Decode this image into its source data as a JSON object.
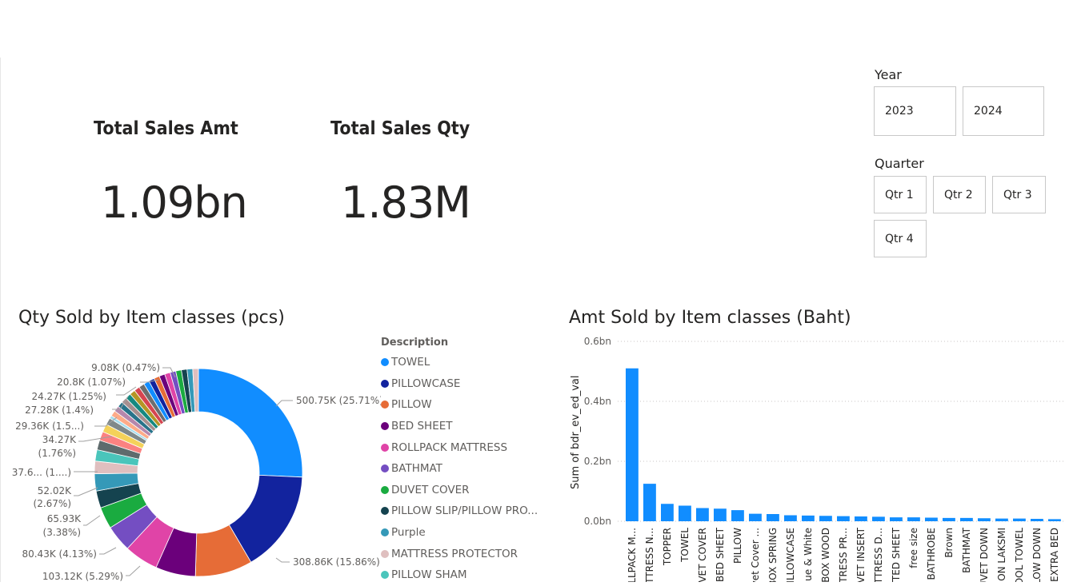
{
  "kpis": {
    "sales_amt": {
      "title": "Total Sales Amt",
      "value": "1.09bn"
    },
    "sales_qty": {
      "title": "Total Sales Qty",
      "value": "1.83M"
    }
  },
  "slicers": {
    "year": {
      "label": "Year",
      "options": [
        "2023",
        "2024"
      ]
    },
    "quarter": {
      "label": "Quarter",
      "options": [
        "Qtr 1",
        "Qtr 2",
        "Qtr 3",
        "Qtr 4"
      ]
    }
  },
  "colors": {
    "accent": "#118dff",
    "donut_palette": [
      "#118dff",
      "#12239e",
      "#e66c37",
      "#6b007b",
      "#e044a7",
      "#744ec2",
      "#1aab40",
      "#15434f",
      "#3599b8",
      "#dfbfbf",
      "#4ac5bb",
      "#5f6b6d",
      "#fb8281",
      "#f4d25a",
      "#7f898a",
      "#a4ddee",
      "#fdab89",
      "#b687ac",
      "#28738a",
      "#a78f8f",
      "#168980",
      "#b59525",
      "#d64550",
      "#6e6e6e"
    ]
  },
  "donut": {
    "title": "Qty Sold by Item classes (pcs)",
    "legend_title": "Description",
    "legend": [
      "TOWEL",
      "PILLOWCASE",
      "PILLOW",
      "BED SHEET",
      "ROLLPACK MATTRESS",
      "BATHMAT",
      "DUVET COVER",
      "PILLOW SLIP/PILLOW PRO...",
      "Purple",
      "MATTRESS PROTECTOR",
      "PILLOW SHAM"
    ],
    "labels": {
      "towel": "500.75K (25.71%)",
      "pillowcase": "308.86K (15.86%)",
      "l9": "9.08K (0.47%)",
      "l20": "20.8K (1.07%)",
      "l24": "24.27K (1.25%)",
      "l27": "27.28K (1.4%)",
      "l29": "29.36K (1.5...)",
      "l34a": "34.27K",
      "l34b": "(1.76%)",
      "l37": "37.6... (1....)",
      "l52a": "52.02K",
      "l52b": "(2.67%)",
      "l65a": "65.93K",
      "l65b": "(3.38%)",
      "l80": "80.43K (4.13%)",
      "l103": "103.12K (5.29%)"
    }
  },
  "chart_data": {
    "type": "bar",
    "title": "Amt Sold by Item classes (Baht)",
    "ylabel": "Sum of bdr_ev_ed_val",
    "xlabel": "",
    "ylim": [
      0,
      0.6
    ],
    "yticks": [
      "0.0bn",
      "0.2bn",
      "0.4bn",
      "0.6bn"
    ],
    "ytick_values": [
      0,
      0.2,
      0.4,
      0.6
    ],
    "grid": true,
    "categories": [
      "ROLLPACK M...",
      "MATTRESS N...",
      "TOPPER",
      "TOWEL",
      "DUVET COVER",
      "BED SHEET",
      "PILLOW",
      "Duvet Cover ...",
      "BOX SPRING",
      "PILLOWCASE",
      "Blue & White",
      "BOX WOOD",
      "MATTRESS PR...",
      "DUVET INSERT",
      "MATTRESS D...",
      "FITTED SHEET",
      "free size",
      "BATHROBE",
      "Brown",
      "BATHMAT",
      "DUVET DOWN",
      "CUSHION LAKSMI",
      "POOL TOWEL",
      "PILLOW DOWN",
      "EXTRA BED"
    ],
    "values": [
      0.51,
      0.125,
      0.058,
      0.052,
      0.044,
      0.042,
      0.037,
      0.025,
      0.024,
      0.02,
      0.019,
      0.018,
      0.017,
      0.016,
      0.015,
      0.013,
      0.013,
      0.012,
      0.011,
      0.011,
      0.01,
      0.009,
      0.009,
      0.008,
      0.007
    ]
  }
}
